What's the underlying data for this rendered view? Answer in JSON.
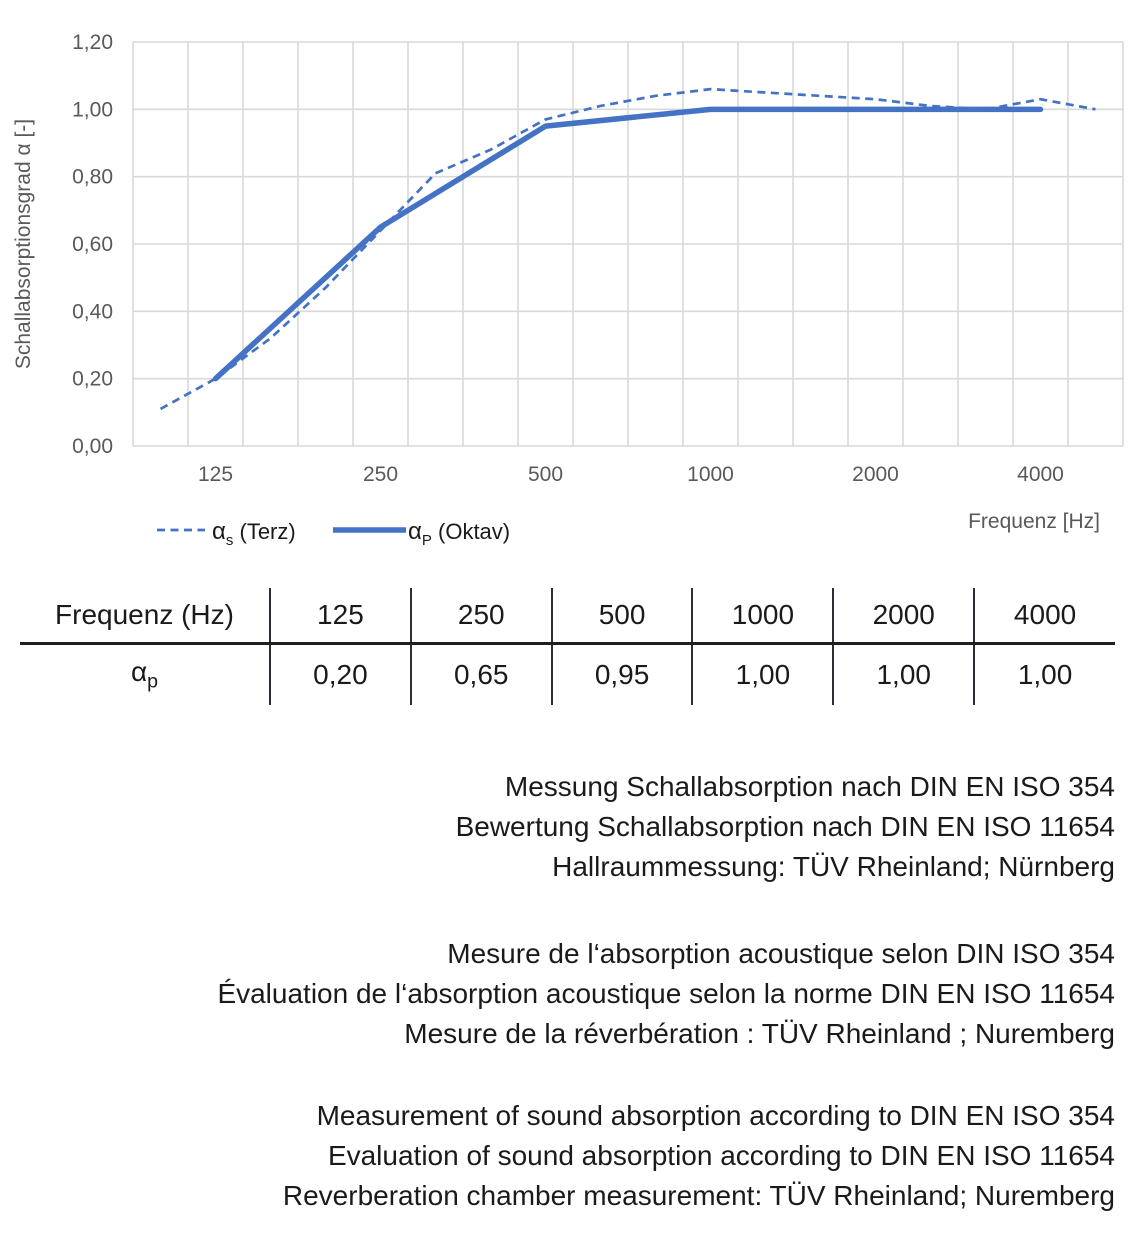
{
  "chart_data": {
    "type": "line",
    "title": "",
    "xlabel": "Frequenz [Hz]",
    "ylabel": "Schallabsorptionsgrad α [-]",
    "x_scale": "third-octave-bands",
    "x_categories_hz": [
      100,
      125,
      160,
      200,
      250,
      315,
      400,
      500,
      630,
      800,
      1000,
      1250,
      1600,
      2000,
      2500,
      3150,
      4000,
      5000
    ],
    "ylim": [
      0,
      1.2
    ],
    "grid": true,
    "legend_position": "bottom-left",
    "y_ticks": {
      "values": [
        0,
        0.2,
        0.4,
        0.6,
        0.8,
        1.0,
        1.2
      ],
      "labels": [
        "0,00",
        "0,20",
        "0,40",
        "0,60",
        "0,80",
        "1,00",
        "1,20"
      ]
    },
    "x_ticks": [
      {
        "hz": 125,
        "label": "125"
      },
      {
        "hz": 250,
        "label": "250"
      },
      {
        "hz": 500,
        "label": "500"
      },
      {
        "hz": 1000,
        "label": "1000"
      },
      {
        "hz": 2000,
        "label": "2000"
      },
      {
        "hz": 4000,
        "label": "4000"
      }
    ],
    "series": [
      {
        "name": "αs (Terz)",
        "style": "dashed",
        "x_hz": [
          100,
          125,
          160,
          200,
          250,
          315,
          400,
          500,
          630,
          800,
          1000,
          1250,
          1600,
          2000,
          2500,
          3150,
          4000,
          5000
        ],
        "values": [
          0.11,
          0.2,
          0.32,
          0.47,
          0.64,
          0.81,
          0.88,
          0.97,
          1.01,
          1.04,
          1.06,
          1.05,
          1.04,
          1.03,
          1.01,
          1.0,
          1.03,
          1.0
        ]
      },
      {
        "name": "αP (Oktav)",
        "style": "solid",
        "x_hz": [
          125,
          250,
          500,
          1000,
          2000,
          4000
        ],
        "values": [
          0.2,
          0.65,
          0.95,
          1.0,
          1.0,
          1.0
        ]
      }
    ]
  },
  "legend": {
    "items": [
      {
        "sample": "dashed",
        "alpha": "α",
        "subscript": "s",
        "rest": " (Terz)"
      },
      {
        "sample": "solid",
        "alpha": "α",
        "subscript": "P",
        "rest": " (Oktav)"
      }
    ]
  },
  "table": {
    "header_label": "Frequenz (Hz)",
    "header_values": [
      "125",
      "250",
      "500",
      "1000",
      "2000",
      "4000"
    ],
    "row_label": {
      "symbol": "α",
      "subscript": "p"
    },
    "row_values": [
      "0,20",
      "0,65",
      "0,95",
      "1,00",
      "1,00",
      "1,00"
    ]
  },
  "notes": {
    "german": [
      "Messung Schallabsorption nach DIN EN ISO 354",
      "Bewertung Schallabsorption nach DIN EN ISO 11654",
      "Hallraummessung: TÜV Rheinland; Nürnberg"
    ],
    "french": [
      "Mesure de l‘absorption acoustique selon DIN ISO 354",
      "Évaluation de l‘absorption acoustique selon la norme DIN EN ISO 11654",
      "Mesure de la réverbération : TÜV Rheinland ; Nuremberg"
    ],
    "english": [
      "Measurement of sound absorption according to DIN EN ISO 354",
      "Evaluation of sound absorption according to DIN EN ISO 11654",
      "Reverberation chamber measurement: TÜV Rheinland; Nuremberg"
    ]
  },
  "colors": {
    "line_blue": "#4472C4",
    "grid": "#D9D9D9",
    "axis_text": "#595959",
    "body_text": "#1A1A1A"
  }
}
